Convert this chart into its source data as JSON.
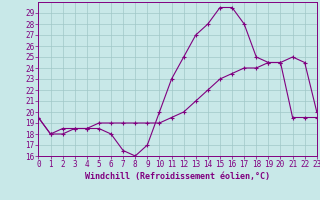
{
  "xlabel": "Windchill (Refroidissement éolien,°C)",
  "x_values": [
    0,
    1,
    2,
    3,
    4,
    5,
    6,
    7,
    8,
    9,
    10,
    11,
    12,
    13,
    14,
    15,
    16,
    17,
    18,
    19,
    20,
    21,
    22,
    23
  ],
  "line1_y": [
    19.5,
    18.0,
    18.0,
    18.5,
    18.5,
    18.5,
    18.0,
    16.5,
    16.0,
    17.0,
    20.0,
    23.0,
    25.0,
    27.0,
    28.0,
    29.5,
    29.5,
    28.0,
    25.0,
    24.5,
    24.5,
    25.0,
    24.5,
    20.0
  ],
  "line2_y": [
    19.5,
    18.0,
    18.5,
    18.5,
    18.5,
    19.0,
    19.0,
    19.0,
    19.0,
    19.0,
    19.0,
    19.5,
    20.0,
    21.0,
    22.0,
    23.0,
    23.5,
    24.0,
    24.0,
    24.5,
    24.5,
    19.5,
    19.5,
    19.5
  ],
  "line_color": "#800080",
  "bg_color": "#c8e8e8",
  "grid_color": "#a0c8c8",
  "ylim": [
    16,
    30
  ],
  "yticks": [
    16,
    17,
    18,
    19,
    20,
    21,
    22,
    23,
    24,
    25,
    26,
    27,
    28,
    29
  ],
  "xlim": [
    0,
    23
  ],
  "xticks": [
    0,
    1,
    2,
    3,
    4,
    5,
    6,
    7,
    8,
    9,
    10,
    11,
    12,
    13,
    14,
    15,
    16,
    17,
    18,
    19,
    20,
    21,
    22,
    23
  ],
  "tick_fontsize": 5.5,
  "xlabel_fontsize": 6.0,
  "marker": "+"
}
